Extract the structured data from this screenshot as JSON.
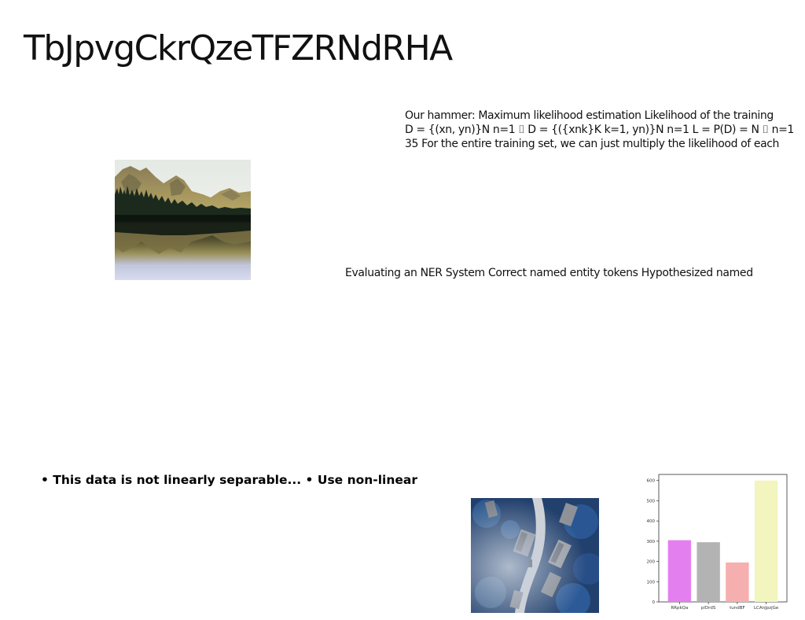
{
  "slide": {
    "title": "TbJpvgCkrQzeTFZRNdRHA"
  },
  "text_block": {
    "lines": [
      "Our hammer: Maximum likelihood estimation Likelihood of the training",
      "D = {(xn, yn)}N n=1 ⌷ D = {({xnk}K k=1, yn)}N n=1 L = P(D) = N ⌷ n=1",
      "35 For the entire training set, we can just multiply the likelihood of each"
    ]
  },
  "ner_text": "Evaluating an NER System Correct named entity tokens Hypothesized named",
  "bullet_text": "• This data is not linearly separable... • Use non-linear",
  "images": {
    "mountain": "mountain-lake-reflection-photo",
    "aerial": "aerial-houses-forest-photo"
  },
  "chart_data": {
    "type": "bar",
    "categories": [
      "RRpkQa",
      "plDrdS",
      "tundBF",
      "LCAnJpzjGe"
    ],
    "values": [
      305,
      295,
      195,
      600
    ],
    "colors": [
      "#e47fef",
      "#b3b3b3",
      "#f6afaf",
      "#f2f5bd"
    ],
    "ylim": [
      0,
      630
    ],
    "yticks": [
      0,
      100,
      200,
      300,
      400,
      500,
      600
    ],
    "title": "",
    "xlabel": "",
    "ylabel": "",
    "grid": false,
    "legend": "none"
  }
}
